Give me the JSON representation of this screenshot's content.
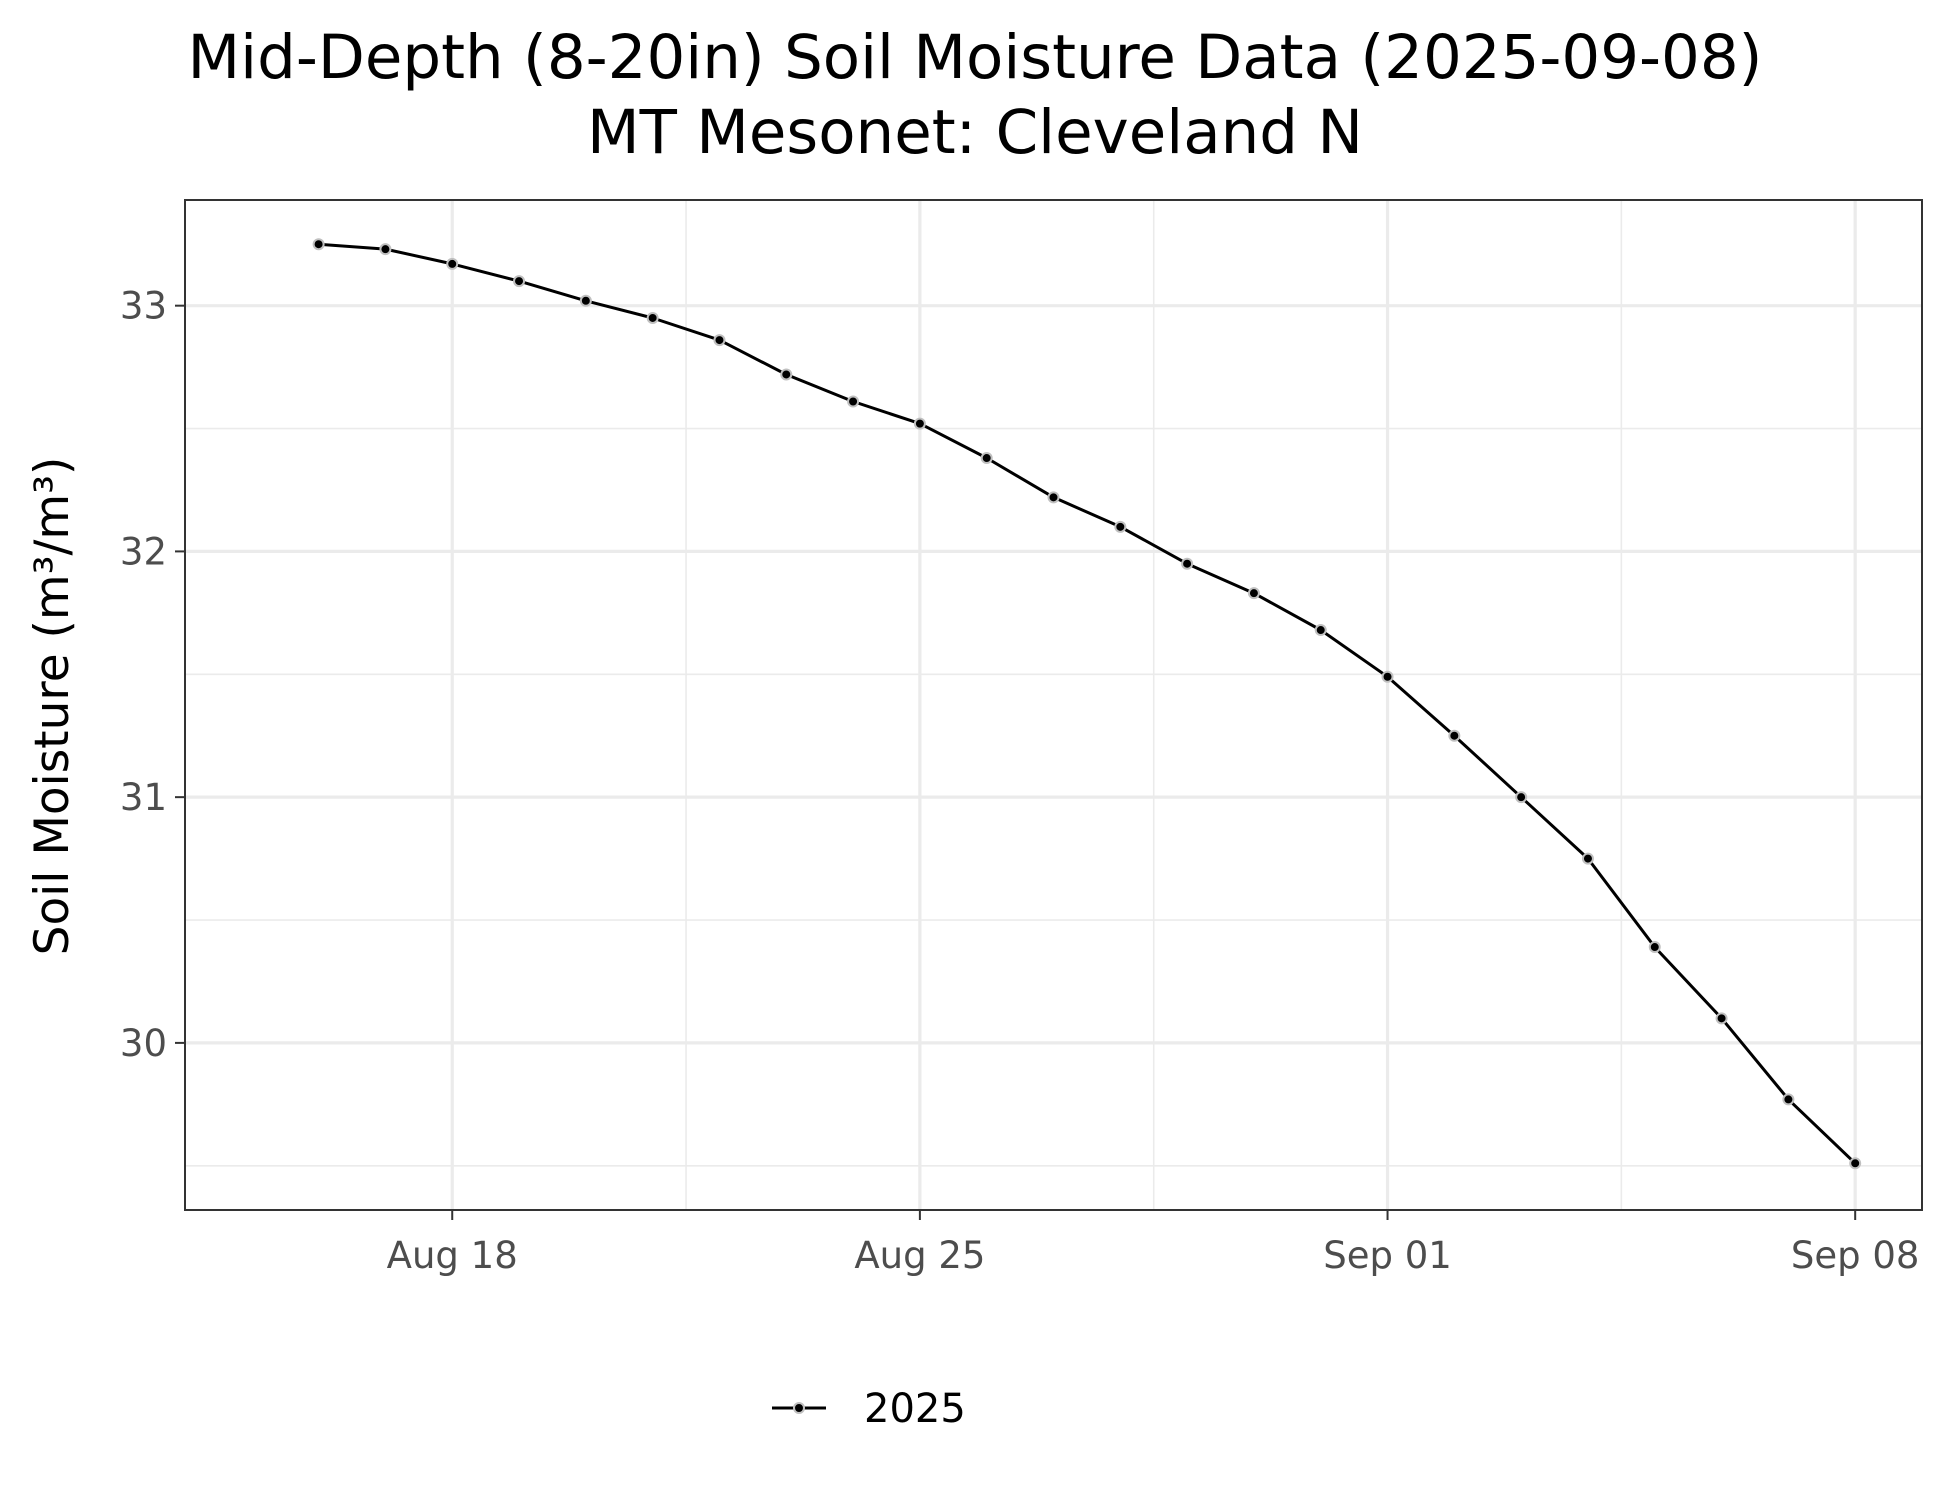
{
  "chart_data": {
    "type": "line",
    "title": "Mid-Depth (8-20in) Soil Moisture Data (2025-09-08)",
    "subtitle": "MT Mesonet: Cleveland N",
    "xlabel": "",
    "ylabel": "Soil Moisture (m³/m³)",
    "x_ticks": [
      {
        "date": "2025-08-18",
        "label": "Aug 18"
      },
      {
        "date": "2025-08-25",
        "label": "Aug 25"
      },
      {
        "date": "2025-09-01",
        "label": "Sep 01"
      },
      {
        "date": "2025-09-08",
        "label": "Sep 08"
      }
    ],
    "y_ticks": [
      30,
      31,
      32,
      33
    ],
    "xlim": [
      "2025-08-14",
      "2025-09-09"
    ],
    "ylim": [
      29.32,
      33.43
    ],
    "grid": true,
    "legend_position": "bottom",
    "colors": {
      "line": "#000000",
      "point_fill": "#000000",
      "point_outline": "#c0c0c0",
      "grid": "#ebebeb",
      "panel_border": "#333333"
    },
    "series": [
      {
        "name": "2025",
        "x": [
          "2025-08-16",
          "2025-08-17",
          "2025-08-18",
          "2025-08-19",
          "2025-08-20",
          "2025-08-21",
          "2025-08-22",
          "2025-08-23",
          "2025-08-24",
          "2025-08-25",
          "2025-08-26",
          "2025-08-27",
          "2025-08-28",
          "2025-08-29",
          "2025-08-30",
          "2025-08-31",
          "2025-09-01",
          "2025-09-02",
          "2025-09-03",
          "2025-09-04",
          "2025-09-05",
          "2025-09-06",
          "2025-09-07",
          "2025-09-08"
        ],
        "y": [
          33.25,
          33.23,
          33.17,
          33.1,
          33.02,
          32.95,
          32.86,
          32.72,
          32.61,
          32.52,
          32.38,
          32.22,
          32.1,
          31.95,
          31.83,
          31.68,
          31.49,
          31.25,
          31.0,
          30.75,
          30.39,
          30.1,
          29.77,
          29.51
        ]
      }
    ]
  }
}
